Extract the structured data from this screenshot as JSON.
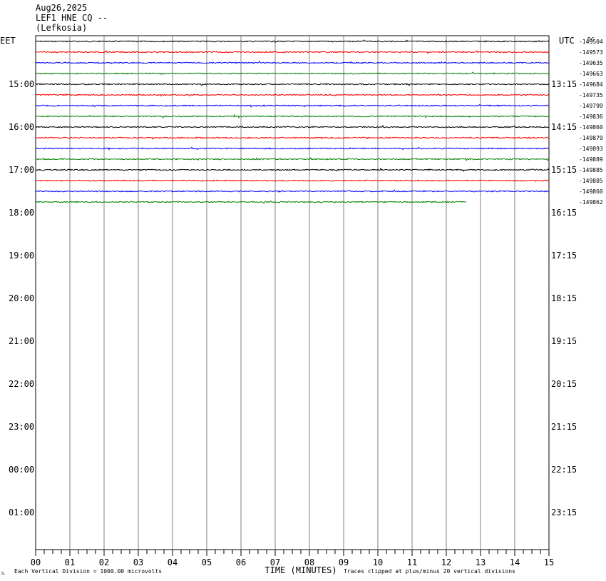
{
  "header": {
    "date": "Aug26,2025",
    "station": "LEF1 HNE CQ --",
    "location": "(Lefkosia)"
  },
  "left_timezone": "EET",
  "right_timezone": "UTC",
  "corner_label": "DC",
  "chart_data": {
    "type": "line",
    "xlabel": "TIME (MINUTES)",
    "x_ticks": [
      "00",
      "01",
      "02",
      "03",
      "04",
      "05",
      "06",
      "07",
      "08",
      "09",
      "10",
      "11",
      "12",
      "13",
      "14",
      "15"
    ],
    "xlim": [
      0,
      15
    ],
    "left_hour_labels": [
      "15:00",
      "16:00",
      "17:00",
      "18:00",
      "19:00",
      "20:00",
      "21:00",
      "22:00",
      "23:00",
      "00:00",
      "01:00"
    ],
    "right_hour_labels": [
      "13:15",
      "14:15",
      "15:15",
      "16:15",
      "17:15",
      "18:15",
      "19:15",
      "20:15",
      "21:15",
      "22:15",
      "23:15"
    ],
    "trace_colors": [
      "#000000",
      "#ff0000",
      "#0000ff",
      "#008000"
    ],
    "traces": [
      {
        "dc_offset": "-149504",
        "end_minute": 15
      },
      {
        "dc_offset": "-149573",
        "end_minute": 15
      },
      {
        "dc_offset": "-149635",
        "end_minute": 15
      },
      {
        "dc_offset": "-149663",
        "end_minute": 15
      },
      {
        "dc_offset": "-149684",
        "end_minute": 15
      },
      {
        "dc_offset": "-149735",
        "end_minute": 15
      },
      {
        "dc_offset": "-149799",
        "end_minute": 15
      },
      {
        "dc_offset": "-149836",
        "end_minute": 15
      },
      {
        "dc_offset": "-149860",
        "end_minute": 15
      },
      {
        "dc_offset": "-149879",
        "end_minute": 15
      },
      {
        "dc_offset": "-149893",
        "end_minute": 15
      },
      {
        "dc_offset": "-149889",
        "end_minute": 15
      },
      {
        "dc_offset": "-149885",
        "end_minute": 15
      },
      {
        "dc_offset": "-149885",
        "end_minute": 15
      },
      {
        "dc_offset": "-149860",
        "end_minute": 15
      },
      {
        "dc_offset": "-149862",
        "end_minute": 12.6
      }
    ],
    "grid": true
  },
  "footer": {
    "scale_note": "Each Vertical Division = 1000.00 microvolts",
    "clip_note": "Traces clipped at plus/minus 20 vertical divisions",
    "corner_mark": "JL"
  }
}
